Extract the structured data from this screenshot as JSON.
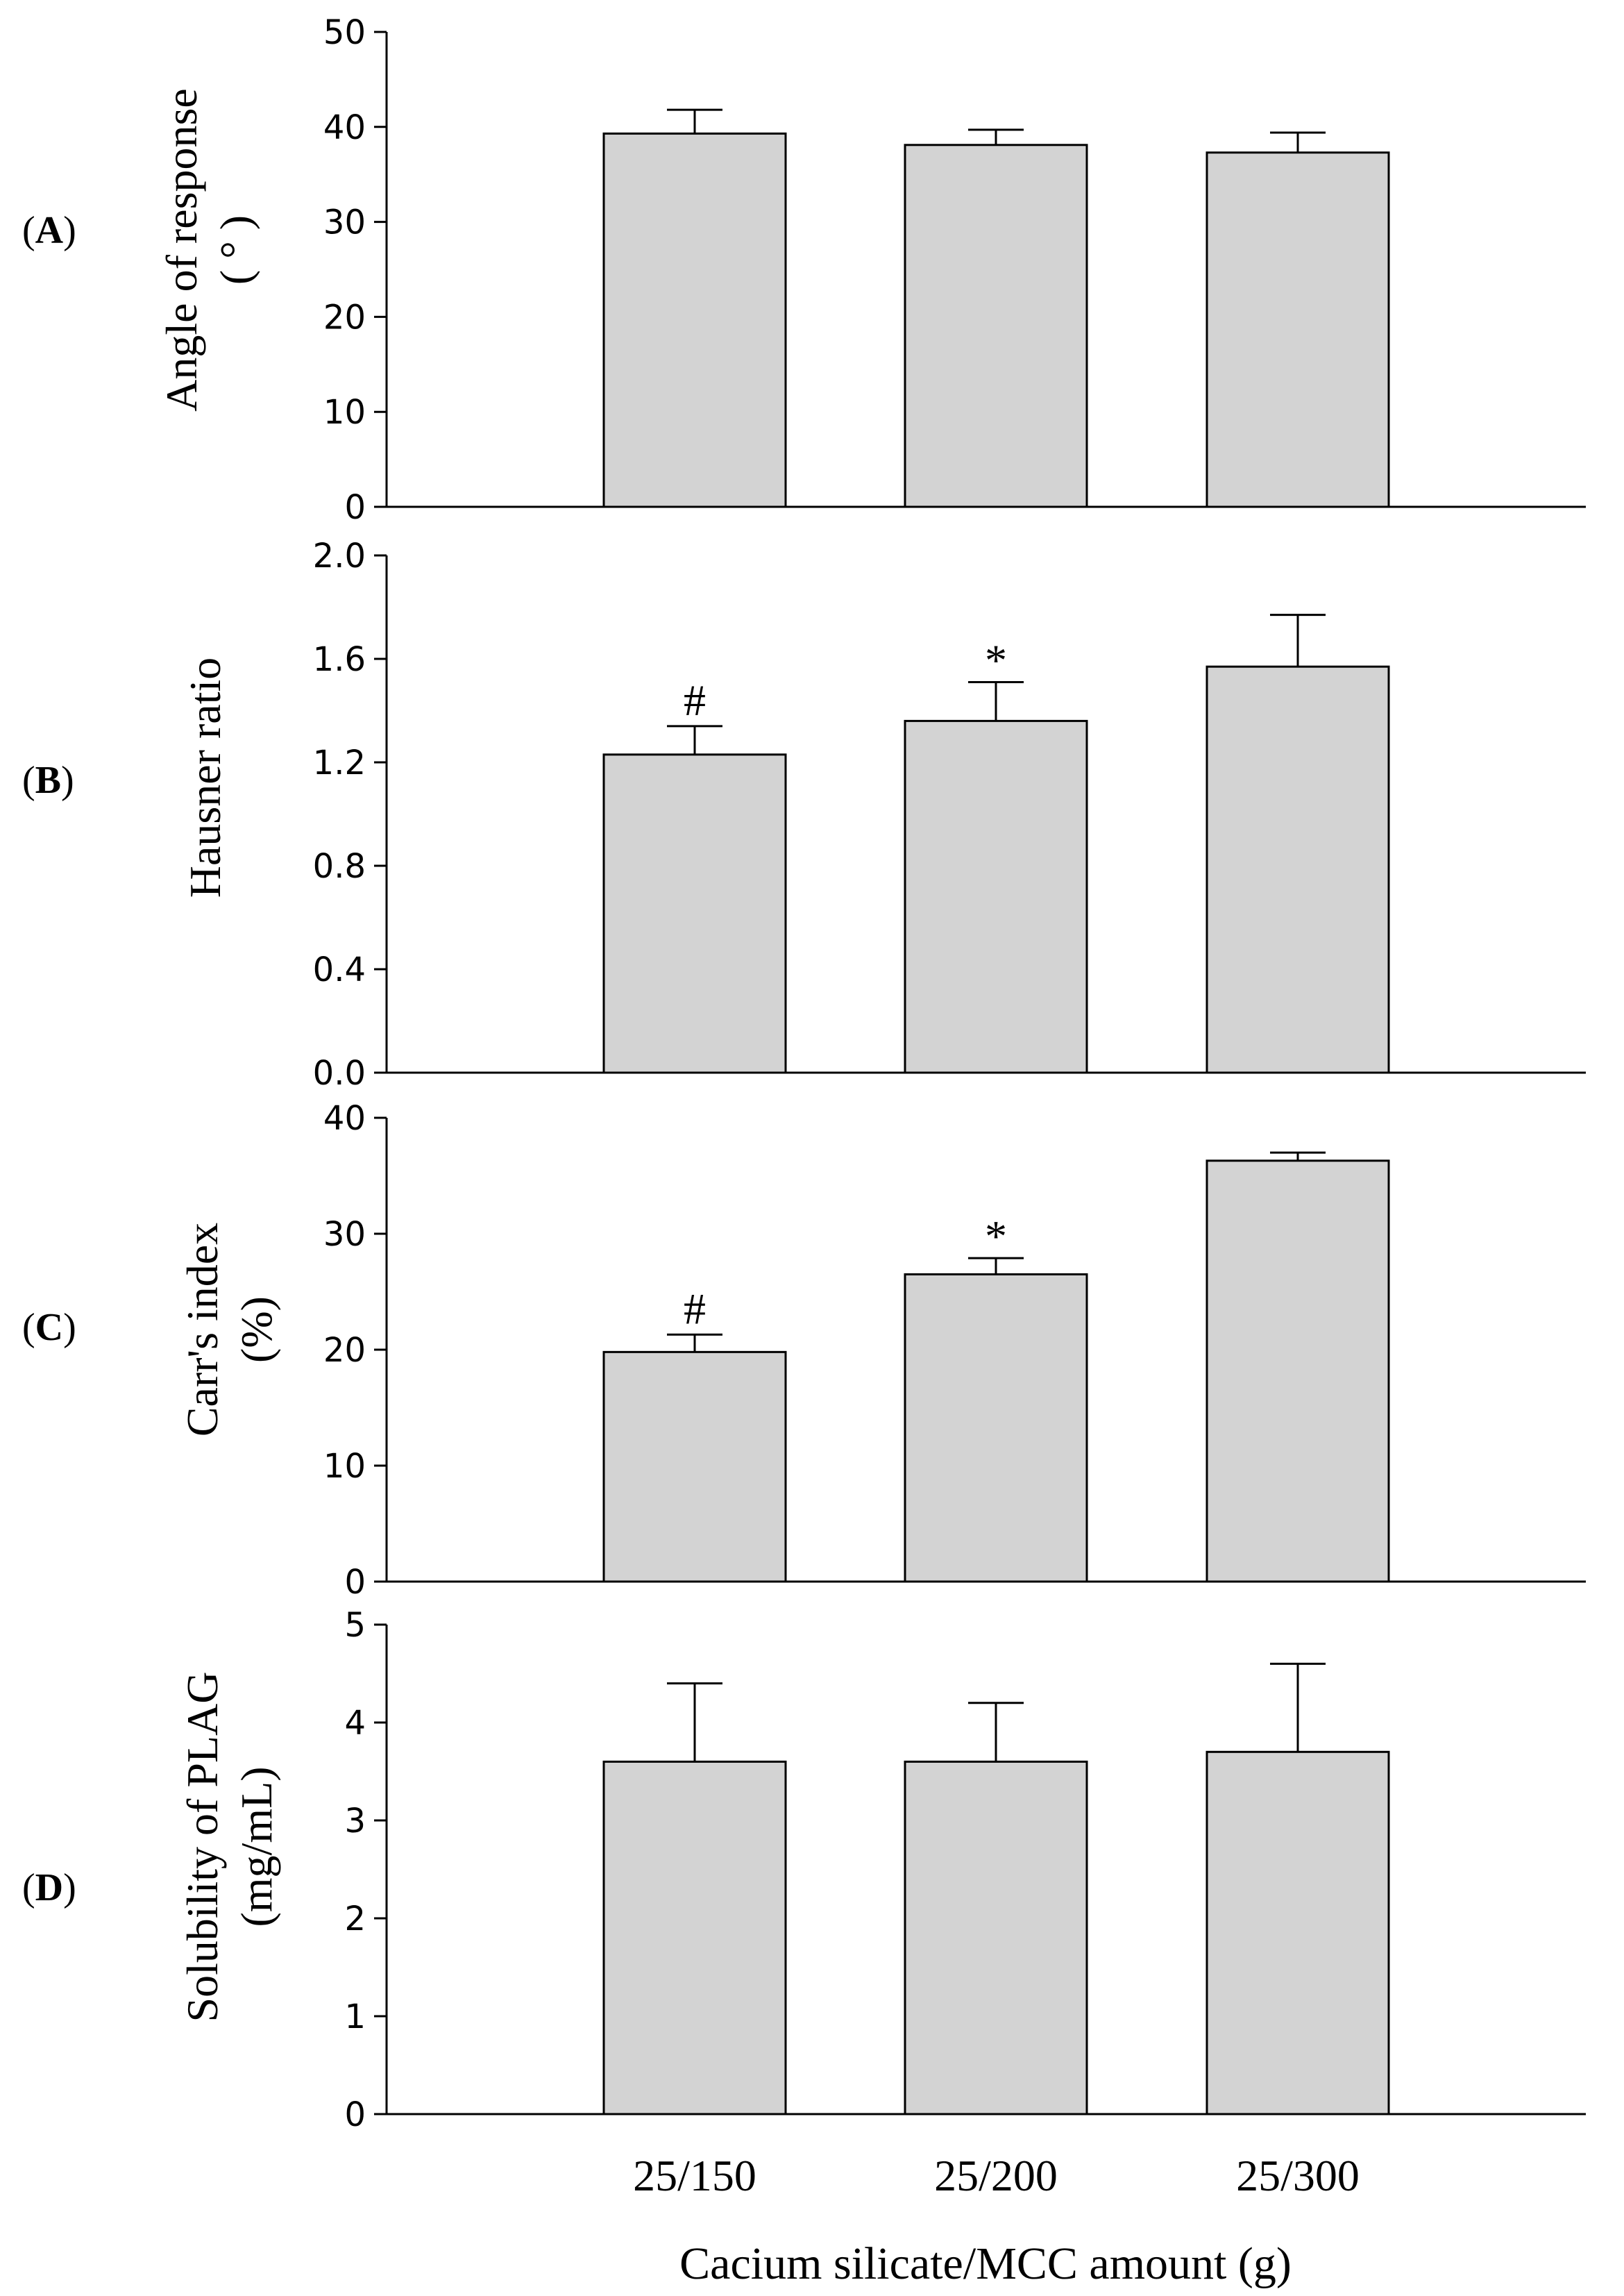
{
  "chart_data": [
    {
      "id": "A",
      "type": "bar",
      "panel_label": "(A)",
      "panel_letter": "A",
      "ylabel_lines": [
        "Angle of response",
        "( ° )"
      ],
      "ylim": [
        0,
        50
      ],
      "yticks": [
        0,
        10,
        20,
        30,
        40,
        50
      ],
      "tick_labels": [
        "0",
        "10",
        "20",
        "30",
        "40",
        "50"
      ],
      "categories": [
        "25/150",
        "25/200",
        "25/300"
      ],
      "values": [
        39.3,
        38.1,
        37.3
      ],
      "errors": [
        2.5,
        1.6,
        2.1
      ],
      "markers": [
        "",
        "",
        ""
      ]
    },
    {
      "id": "B",
      "type": "bar",
      "panel_label": "(B)",
      "panel_letter": "B",
      "ylabel_lines": [
        "Hausner ratio"
      ],
      "ylim": [
        0,
        2.0
      ],
      "yticks": [
        0,
        0.4,
        0.8,
        1.2,
        1.6,
        2.0
      ],
      "tick_labels": [
        "0.0",
        "0.4",
        "0.8",
        "1.2",
        "1.6",
        "2.0"
      ],
      "categories": [
        "25/150",
        "25/200",
        "25/300"
      ],
      "values": [
        1.23,
        1.36,
        1.57
      ],
      "errors": [
        0.11,
        0.15,
        0.2
      ],
      "markers": [
        "#",
        "*",
        ""
      ]
    },
    {
      "id": "C",
      "type": "bar",
      "panel_label": "(C)",
      "panel_letter": "C",
      "ylabel_lines": [
        "Carr's index",
        "(%)"
      ],
      "ylim": [
        0,
        40
      ],
      "yticks": [
        0,
        10,
        20,
        30,
        40
      ],
      "tick_labels": [
        "0",
        "10",
        "20",
        "30",
        "40"
      ],
      "categories": [
        "25/150",
        "25/200",
        "25/300"
      ],
      "values": [
        19.8,
        26.5,
        36.3
      ],
      "errors": [
        1.5,
        1.4,
        0.7
      ],
      "markers": [
        "#",
        "*",
        ""
      ]
    },
    {
      "id": "D",
      "type": "bar",
      "panel_label": "(D)",
      "panel_letter": "D",
      "ylabel_lines": [
        "Solubility of PLAG",
        "(mg/mL)"
      ],
      "ylim": [
        0,
        5
      ],
      "yticks": [
        0,
        1,
        2,
        3,
        4,
        5
      ],
      "tick_labels": [
        "0",
        "1",
        "2",
        "3",
        "4",
        "5"
      ],
      "categories": [
        "25/150",
        "25/200",
        "25/300"
      ],
      "values": [
        3.6,
        3.6,
        3.7
      ],
      "errors": [
        0.8,
        0.6,
        0.9
      ],
      "markers": [
        "",
        "",
        ""
      ]
    }
  ],
  "x_axis": {
    "categories": [
      "25/150",
      "25/200",
      "25/300"
    ],
    "title": "Cacium silicate/MCC amount (g)"
  }
}
